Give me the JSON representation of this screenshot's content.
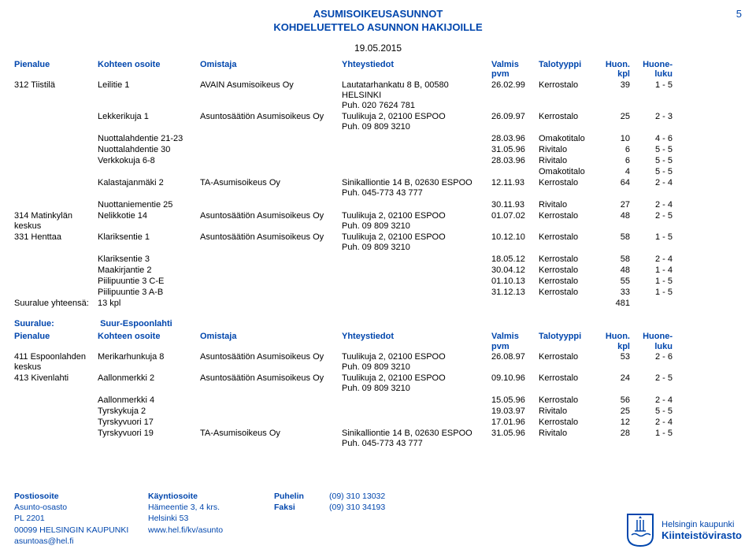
{
  "pageNumber": "5",
  "title1": "ASUMISOIKEUSASUNNOT",
  "title2": "KOHDELUETTELO ASUNNON HAKIJOILLE",
  "date": "19.05.2015",
  "headers": {
    "c0": "Pienalue",
    "c1": "Kohteen osoite",
    "c2": "Omistaja",
    "c3": "Yhteystiedot",
    "c4a": "Valmis",
    "c4b": "pvm",
    "c5": "Talotyyppi",
    "c6a": "Huon.",
    "c6b": "kpl",
    "c7a": "Huone-",
    "c7b": "luku"
  },
  "rows1": [
    [
      "312 Tiistilä",
      "Leilitie 1",
      "AVAIN Asumisoikeus Oy",
      "Lautatarhankatu 8 B, 00580\nHELSINKI\nPuh. 020 7624 781",
      "26.02.99",
      "Kerrostalo",
      "39",
      "1 - 5"
    ],
    [
      "",
      "Lekkerikuja 1",
      "Asuntosäätiön Asumisoikeus Oy",
      "Tuulikuja 2, 02100 ESPOO\nPuh. 09 809 3210",
      "26.09.97",
      "Kerrostalo",
      "25",
      "2 - 3"
    ],
    [
      "",
      "Nuottalahdentie 21-23",
      "",
      "",
      "28.03.96",
      "Omakotitalo",
      "10",
      "4 - 6"
    ],
    [
      "",
      "Nuottalahdentie 30",
      "",
      "",
      "31.05.96",
      "Rivitalo",
      "6",
      "5 - 5"
    ],
    [
      "",
      "Verkkokuja 6-8",
      "",
      "",
      "28.03.96",
      "Rivitalo",
      "6",
      "5 - 5"
    ],
    [
      "",
      "",
      "",
      "",
      "",
      "Omakotitalo",
      "4",
      "5 - 5"
    ],
    [
      "",
      "Kalastajanmäki 2",
      "TA-Asumisoikeus Oy",
      "Sinikalliontie 14 B, 02630 ESPOO\nPuh. 045-773 43 777",
      "12.11.93",
      "Kerrostalo",
      "64",
      "2 - 4"
    ],
    [
      "",
      "Nuottaniementie 25",
      "",
      "",
      "30.11.93",
      "Rivitalo",
      "27",
      "2 - 4"
    ],
    [
      "314 Matinkylän\nkeskus",
      "Nelikkotie 14",
      "Asuntosäätiön Asumisoikeus Oy",
      "Tuulikuja 2, 02100 ESPOO\nPuh. 09 809 3210",
      "01.07.02",
      "Kerrostalo",
      "48",
      "2 - 5"
    ],
    [
      "331 Henttaa",
      "Klariksentie 1",
      "Asuntosäätiön Asumisoikeus Oy",
      "Tuulikuja 2, 02100 ESPOO\nPuh. 09 809 3210",
      "10.12.10",
      "Kerrostalo",
      "58",
      "1 - 5"
    ],
    [
      "",
      "Klariksentie 3",
      "",
      "",
      "18.05.12",
      "Kerrostalo",
      "58",
      "2 - 4"
    ],
    [
      "",
      "Maakirjantie 2",
      "",
      "",
      "30.04.12",
      "Kerrostalo",
      "48",
      "1 - 4"
    ],
    [
      "",
      "Piilipuuntie 3 C-E",
      "",
      "",
      "01.10.13",
      "Kerrostalo",
      "55",
      "1 - 5"
    ],
    [
      "",
      "Piilipuuntie 3 A-B",
      "",
      "",
      "31.12.13",
      "Kerrostalo",
      "33",
      "1 - 5"
    ]
  ],
  "subtotal1": {
    "label": "Suuralue yhteensä:",
    "value": "13 kpl",
    "total": "481"
  },
  "section2": {
    "label": "Suuralue:",
    "value": "Suur-Espoonlahti"
  },
  "rows2": [
    [
      "411 Espoonlahden\nkeskus",
      "Merikarhunkuja 8",
      "Asuntosäätiön Asumisoikeus Oy",
      "Tuulikuja 2, 02100 ESPOO\nPuh. 09 809 3210",
      "26.08.97",
      "Kerrostalo",
      "53",
      "2 - 6"
    ],
    [
      "413 Kivenlahti",
      "Aallonmerkki 2",
      "Asuntosäätiön Asumisoikeus Oy",
      "Tuulikuja 2, 02100 ESPOO\nPuh. 09 809 3210",
      "09.10.96",
      "Kerrostalo",
      "24",
      "2 - 5"
    ],
    [
      "",
      "Aallonmerkki 4",
      "",
      "",
      "15.05.96",
      "Kerrostalo",
      "56",
      "2 - 4"
    ],
    [
      "",
      "Tyrskykuja 2",
      "",
      "",
      "19.03.97",
      "Rivitalo",
      "25",
      "5 - 5"
    ],
    [
      "",
      "Tyrskyvuori 17",
      "",
      "",
      "17.01.96",
      "Kerrostalo",
      "12",
      "2 - 4"
    ],
    [
      "",
      "Tyrskyvuori 19",
      "TA-Asumisoikeus Oy",
      "Sinikalliontie 14 B, 02630 ESPOO\nPuh. 045-773 43 777",
      "31.05.96",
      "Rivitalo",
      "28",
      "1 - 5"
    ]
  ],
  "footer": {
    "post_h": "Postiosoite",
    "post1": "Asunto-osasto",
    "post2": "PL 2201",
    "post3": "00099 HELSINGIN KAUPUNKI",
    "post4": "asuntoas@hel.fi",
    "visit_h": "Käyntiosoite",
    "visit1": "Hämeentie 3, 4 krs.",
    "visit2": "Helsinki 53",
    "visit3": "www.hel.fi/kv/asunto",
    "tel_h": "Puhelin",
    "tel_v": "(09) 310 13032",
    "fax_h": "Faksi",
    "fax_v": "(09) 310 34193",
    "logo1": "Helsingin kaupunki",
    "logo2": "Kiinteistövirasto"
  },
  "colors": {
    "brand": "#0046ad",
    "text": "#000000",
    "bg": "#ffffff"
  }
}
